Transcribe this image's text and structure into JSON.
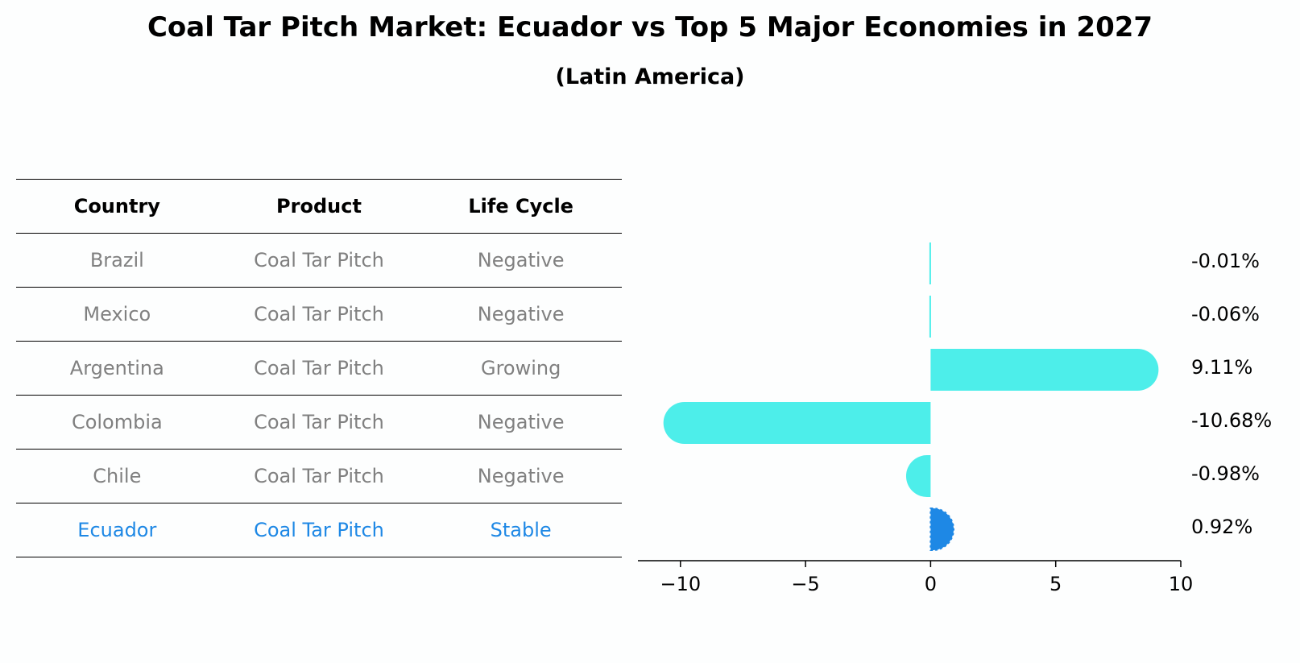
{
  "title": "Coal Tar Pitch Market: Ecuador vs Top 5 Major Economies in 2027",
  "subtitle": "(Latin America)",
  "table": {
    "headers": [
      "Country",
      "Product",
      "Life Cycle"
    ],
    "rows": [
      {
        "country": "Brazil",
        "product": "Coal Tar Pitch",
        "life_cycle": "Negative",
        "highlight": false
      },
      {
        "country": "Mexico",
        "product": "Coal Tar Pitch",
        "life_cycle": "Negative",
        "highlight": false
      },
      {
        "country": "Argentina",
        "product": "Coal Tar Pitch",
        "life_cycle": "Growing",
        "highlight": false
      },
      {
        "country": "Colombia",
        "product": "Coal Tar Pitch",
        "life_cycle": "Negative",
        "highlight": false
      },
      {
        "country": "Chile",
        "product": "Coal Tar Pitch",
        "life_cycle": "Negative",
        "highlight": false
      },
      {
        "country": "Ecuador",
        "product": "Coal Tar Pitch",
        "life_cycle": "Stable",
        "highlight": true
      }
    ]
  },
  "colors": {
    "bar": "#4deeea",
    "highlight_bar": "#1e88e5",
    "highlight_text": "#1e88e5",
    "muted_text": "#808080"
  },
  "chart_data": {
    "type": "bar",
    "orientation": "horizontal",
    "categories": [
      "Brazil",
      "Mexico",
      "Argentina",
      "Colombia",
      "Chile",
      "Ecuador"
    ],
    "values": [
      -0.01,
      -0.06,
      9.11,
      -10.68,
      -0.98,
      0.92
    ],
    "value_labels": [
      "-0.01%",
      "-0.06%",
      "9.11%",
      "-10.68%",
      "-0.98%",
      "0.92%"
    ],
    "highlight_index": 5,
    "xlim": [
      -11.7,
      10
    ],
    "xticks": [
      -10,
      -5,
      0,
      5,
      10
    ],
    "xtick_labels": [
      "−10",
      "−5",
      "0",
      "5",
      "10"
    ],
    "grid": false
  }
}
